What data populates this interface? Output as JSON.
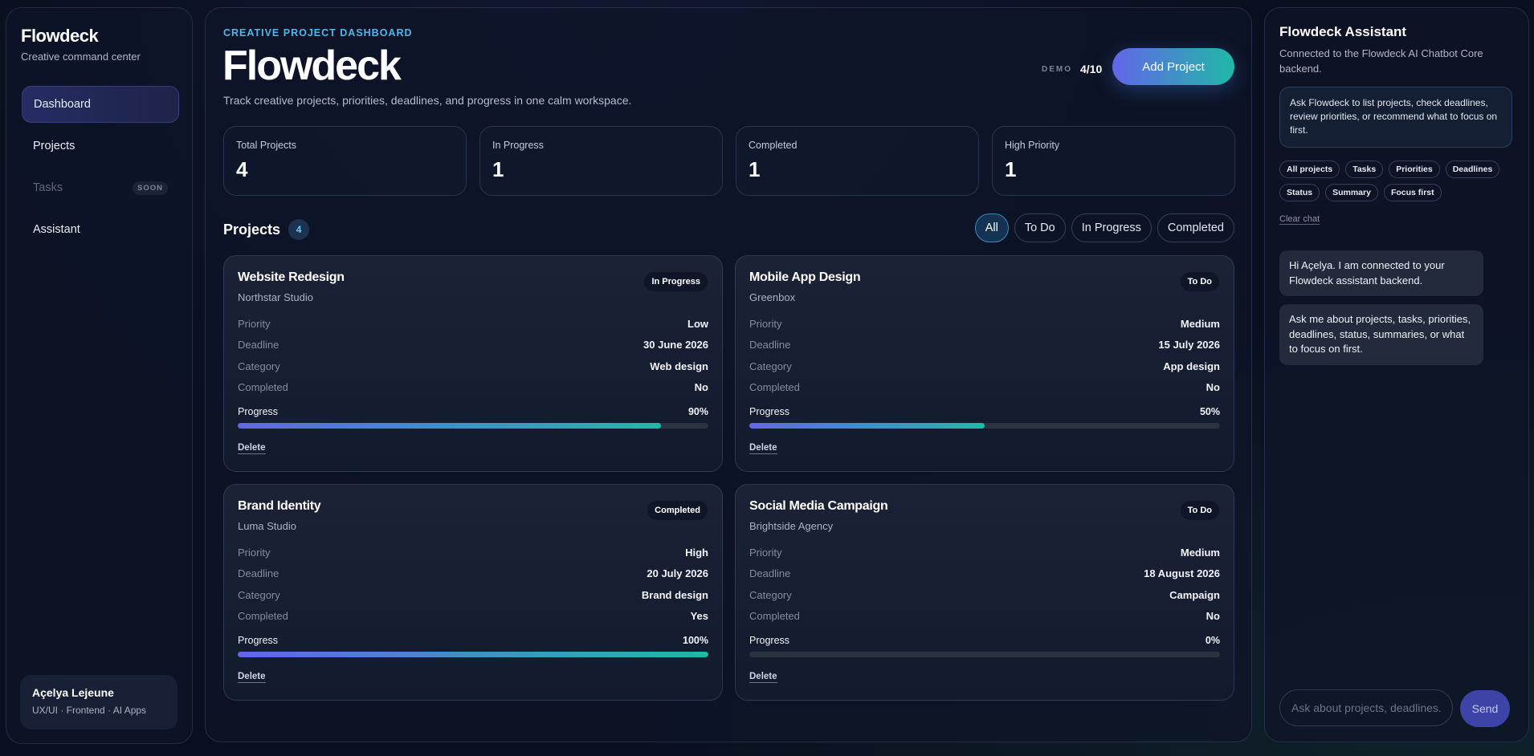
{
  "sidebar": {
    "brand": "Flowdeck",
    "brand_sub": "Creative command center",
    "nav": [
      {
        "label": "Dashboard",
        "state": "active"
      },
      {
        "label": "Projects",
        "state": "normal"
      },
      {
        "label": "Tasks",
        "state": "disabled",
        "badge": "SOON"
      },
      {
        "label": "Assistant",
        "state": "normal"
      }
    ],
    "user": {
      "name": "Açelya Lejeune",
      "role": "UX/UI · Frontend · AI Apps"
    }
  },
  "header": {
    "eyebrow": "CREATIVE PROJECT DASHBOARD",
    "title": "Flowdeck",
    "description": "Track creative projects, priorities, deadlines, and progress in one calm workspace.",
    "demo_label": "DEMO",
    "demo_count": "4/10",
    "add_button": "Add Project"
  },
  "stats": [
    {
      "label": "Total Projects",
      "value": "4"
    },
    {
      "label": "In Progress",
      "value": "1"
    },
    {
      "label": "Completed",
      "value": "1"
    },
    {
      "label": "High Priority",
      "value": "1"
    }
  ],
  "projects": {
    "title": "Projects",
    "count": "4",
    "filters": [
      {
        "label": "All",
        "active": true
      },
      {
        "label": "To Do",
        "active": false
      },
      {
        "label": "In Progress",
        "active": false
      },
      {
        "label": "Completed",
        "active": false
      }
    ],
    "field_labels": {
      "priority": "Priority",
      "deadline": "Deadline",
      "category": "Category",
      "completed": "Completed",
      "progress": "Progress"
    },
    "delete_label": "Delete",
    "items": [
      {
        "name": "Website Redesign",
        "client": "Northstar Studio",
        "status": "In Progress",
        "priority": "Low",
        "deadline": "30 June 2026",
        "category": "Web design",
        "completed": "No",
        "progress_label": "90%",
        "progress": 90
      },
      {
        "name": "Mobile App Design",
        "client": "Greenbox",
        "status": "To Do",
        "priority": "Medium",
        "deadline": "15 July 2026",
        "category": "App design",
        "completed": "No",
        "progress_label": "50%",
        "progress": 50
      },
      {
        "name": "Brand Identity",
        "client": "Luma Studio",
        "status": "Completed",
        "priority": "High",
        "deadline": "20 July 2026",
        "category": "Brand design",
        "completed": "Yes",
        "progress_label": "100%",
        "progress": 100
      },
      {
        "name": "Social Media Campaign",
        "client": "Brightside Agency",
        "status": "To Do",
        "priority": "Medium",
        "deadline": "18 August 2026",
        "category": "Campaign",
        "completed": "No",
        "progress_label": "0%",
        "progress": 0
      }
    ]
  },
  "assistant": {
    "title": "Flowdeck Assistant",
    "subtitle": "Connected to the Flowdeck AI Chatbot Core backend.",
    "hint": "Ask Flowdeck to list projects, check deadlines, review priorities, or recommend what to focus on first.",
    "chips": [
      "All projects",
      "Tasks",
      "Priorities",
      "Deadlines",
      "Status",
      "Summary",
      "Focus first"
    ],
    "clear_label": "Clear chat",
    "messages": [
      "Hi Açelya. I am connected to your Flowdeck assistant backend.",
      "Ask me about projects, tasks, priorities, deadlines, status, summaries, or what to focus on first."
    ],
    "input_placeholder": "Ask about projects, deadlines...",
    "send_label": "Send"
  },
  "colors": {
    "accent_start": "#6366e8",
    "accent_end": "#1fb9a7",
    "eyebrow": "#4fb7ea"
  }
}
